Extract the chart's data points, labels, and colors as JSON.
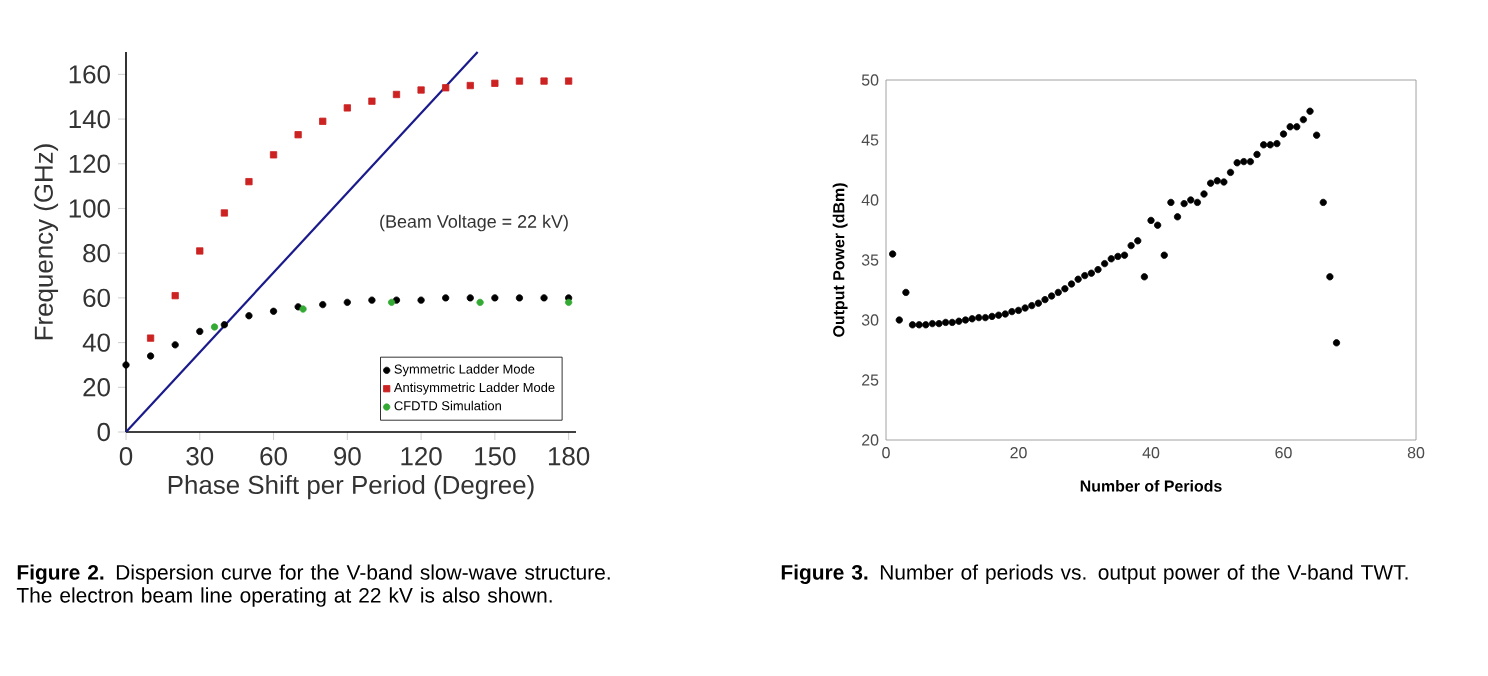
{
  "chart_data": [
    {
      "type": "scatter",
      "xlabel": "Phase Shift per Period (Degree)",
      "ylabel": "Frequency (GHz)",
      "xlim": [
        0,
        183
      ],
      "ylim": [
        0,
        170
      ],
      "xticks": [
        0,
        30,
        60,
        90,
        120,
        150,
        180
      ],
      "yticks": [
        0,
        20,
        40,
        60,
        80,
        100,
        120,
        140,
        160
      ],
      "legend": "bottom right",
      "grid": false,
      "series": [
        {
          "name": "Symmetric Ladder Mode",
          "color": "#000000",
          "marker": "circle",
          "x": [
            0,
            10,
            20,
            30,
            40,
            50,
            60,
            70,
            80,
            90,
            100,
            110,
            120,
            130,
            140,
            150,
            160,
            170,
            180
          ],
          "values": [
            30,
            34,
            39,
            45,
            48,
            52,
            54,
            56,
            57,
            58,
            59,
            59,
            59,
            60,
            60,
            60,
            60,
            60,
            60
          ]
        },
        {
          "name": "Antisymmetric Ladder Mode",
          "color": "#cc2222",
          "marker": "square",
          "x": [
            10,
            20,
            30,
            40,
            50,
            60,
            70,
            80,
            90,
            100,
            110,
            120,
            130,
            140,
            150,
            160,
            170,
            180
          ],
          "values": [
            42,
            61,
            81,
            98,
            112,
            124,
            133,
            139,
            145,
            148,
            151,
            153,
            154,
            155,
            156,
            157,
            157,
            157
          ]
        },
        {
          "name": "CFDTD Simulation",
          "color": "#33aa33",
          "marker": "circle",
          "x": [
            36,
            72,
            108,
            144,
            180
          ],
          "values": [
            47,
            55,
            58,
            58,
            58
          ]
        },
        {
          "type": "line",
          "color": "#1a1a8c",
          "x": [
            0,
            143
          ],
          "values": [
            0,
            170
          ]
        }
      ],
      "annotations": [
        "(Beam Voltage = 22 kV)",
        "**Figure 2.** Dispersion curve for the V-band slow-wave structure. The electron beam line operating at 22 kV is also shown."
      ]
    },
    {
      "type": "scatter",
      "xlabel": "Number of Periods",
      "ylabel": "Output Power  (dBm)",
      "xlim": [
        0,
        80
      ],
      "ylim": [
        20,
        50
      ],
      "xticks": [
        0,
        20,
        40,
        60,
        80
      ],
      "yticks": [
        20,
        25,
        30,
        35,
        40,
        45,
        50
      ],
      "grid": false,
      "series": [
        {
          "color": "#000000",
          "marker": "circle",
          "x": [
            1,
            2,
            3,
            4,
            5,
            6,
            7,
            8,
            9,
            10,
            11,
            12,
            13,
            14,
            15,
            16,
            17,
            18,
            19,
            20,
            21,
            22,
            23,
            24,
            25,
            26,
            27,
            28,
            29,
            30,
            31,
            32,
            33,
            34,
            35,
            36,
            37,
            38,
            39,
            40,
            41,
            42,
            43,
            44,
            45,
            46,
            47,
            48,
            49,
            50,
            51,
            52,
            53,
            54,
            55,
            56,
            57,
            58,
            59,
            60,
            61,
            62,
            63,
            64,
            65,
            66,
            67,
            68
          ],
          "values": [
            35.5,
            30,
            32.3,
            29.6,
            29.6,
            29.6,
            29.7,
            29.7,
            29.8,
            29.8,
            29.9,
            30,
            30.1,
            30.2,
            30.2,
            30.3,
            30.4,
            30.5,
            30.7,
            30.8,
            31,
            31.2,
            31.4,
            31.7,
            32,
            32.3,
            32.6,
            33,
            33.4,
            33.7,
            33.9,
            34.2,
            34.7,
            35.1,
            35.3,
            35.4,
            36.2,
            36.6,
            33.6,
            38.3,
            37.9,
            35.4,
            39.8,
            38.6,
            39.7,
            40,
            39.8,
            40.5,
            41.4,
            41.6,
            41.5,
            42.3,
            43.1,
            43.2,
            43.2,
            43.8,
            44.6,
            44.6,
            44.7,
            45.5,
            46.1,
            46.1,
            46.7,
            47.4,
            45.4,
            39.8,
            33.6,
            28.1
          ]
        }
      ],
      "annotations": [
        "**Figure 3.** Number of periods vs. output power of the V-band TWT."
      ]
    }
  ]
}
